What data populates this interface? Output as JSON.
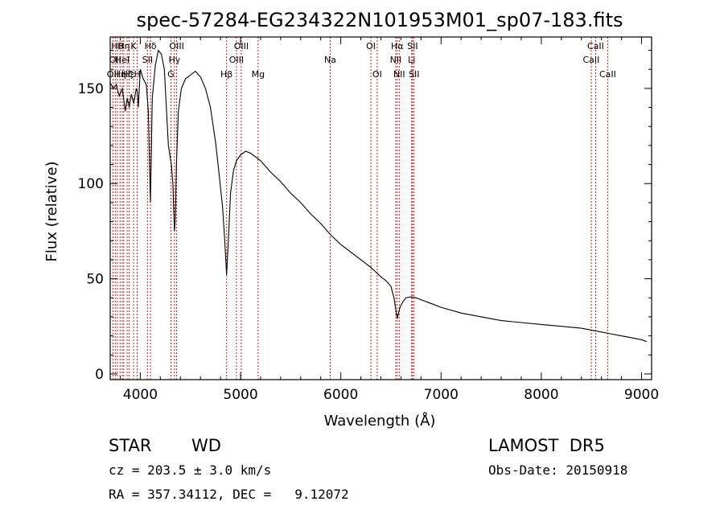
{
  "chart_data": {
    "type": "line",
    "title": "spec-57284-EG234322N101953M01_sp07-183.fits",
    "xlabel": "Wavelength (Å)",
    "ylabel": "Flux (relative)",
    "xlim": [
      3700,
      9100
    ],
    "ylim": [
      -3,
      177
    ],
    "x_ticks": [
      4000,
      5000,
      6000,
      7000,
      8000,
      9000
    ],
    "y_ticks": [
      0,
      50,
      100,
      150
    ],
    "grid": false,
    "legend": "none",
    "colors": {
      "line": "#000000",
      "lines_marker": "#cc0000"
    },
    "series": [
      {
        "x": [
          3700,
          3730,
          3760,
          3790,
          3820,
          3850,
          3870,
          3890,
          3910,
          3935,
          3960,
          3970,
          3980,
          4000,
          4030,
          4060,
          4080,
          4101,
          4120,
          4150,
          4180,
          4210,
          4240,
          4260,
          4280,
          4310,
          4325,
          4340,
          4350,
          4360,
          4380,
          4410,
          4450,
          4500,
          4550,
          4600,
          4650,
          4700,
          4750,
          4780,
          4800,
          4820,
          4840,
          4861,
          4880,
          4900,
          4930,
          4960,
          5000,
          5050,
          5100,
          5200,
          5300,
          5400,
          5500,
          5600,
          5700,
          5800,
          5900,
          6000,
          6100,
          6200,
          6300,
          6400,
          6450,
          6500,
          6530,
          6563,
          6590,
          6620,
          6650,
          6700,
          6750,
          6800,
          6900,
          7000,
          7200,
          7400,
          7600,
          7800,
          8000,
          8200,
          8400,
          8600,
          8800,
          8900,
          9000,
          9050
        ],
        "y": [
          153,
          150,
          152,
          146,
          150,
          138,
          145,
          140,
          147,
          142,
          150,
          148,
          140,
          160,
          155,
          152,
          138,
          90,
          145,
          162,
          170,
          168,
          160,
          140,
          120,
          110,
          100,
          75,
          82,
          110,
          138,
          150,
          155,
          157,
          159,
          156,
          150,
          140,
          122,
          108,
          98,
          88,
          72,
          52,
          72,
          95,
          107,
          112,
          115,
          117,
          116,
          112,
          106,
          101,
          95,
          90,
          84,
          79,
          73,
          68,
          64,
          60,
          56,
          51,
          49,
          46,
          40,
          29,
          35,
          38,
          40,
          40.5,
          40,
          39,
          37,
          35,
          32,
          30,
          28,
          27,
          26,
          25,
          24,
          22,
          20,
          19,
          18,
          17
        ]
      }
    ],
    "line_markers": [
      {
        "w": 3727,
        "label": "OII",
        "row": 3
      },
      {
        "w": 3750,
        "label": "OII",
        "row": 2
      },
      {
        "w": 3771,
        "label": "Hθ",
        "row": 1
      },
      {
        "w": 3798,
        "label": "Hη",
        "row": 3
      },
      {
        "w": 3820,
        "label": "HeI",
        "row": 2
      },
      {
        "w": 3835,
        "label": "Hη",
        "row": 1
      },
      {
        "w": 3869,
        "label": "Hζ",
        "row": 3
      },
      {
        "w": 3889,
        "label": "Hε",
        "row": 3
      },
      {
        "w": 3933,
        "label": "K",
        "row": 1
      },
      {
        "w": 3970,
        "label": "H",
        "row": 3
      },
      {
        "w": 4072,
        "label": "SII",
        "row": 2
      },
      {
        "w": 4102,
        "label": "Hδ",
        "row": 1
      },
      {
        "w": 4305,
        "label": "G",
        "row": 3
      },
      {
        "w": 4341,
        "label": "Hγ",
        "row": 2
      },
      {
        "w": 4363,
        "label": "OIII",
        "row": 1
      },
      {
        "w": 4861,
        "label": "Hβ",
        "row": 3
      },
      {
        "w": 4959,
        "label": "OIII",
        "row": 2
      },
      {
        "w": 5007,
        "label": "OIII",
        "row": 1
      },
      {
        "w": 5175,
        "label": "Mg",
        "row": 3
      },
      {
        "w": 5894,
        "label": "Na",
        "row": 2
      },
      {
        "w": 6300,
        "label": "OI",
        "row": 1
      },
      {
        "w": 6363,
        "label": "OI",
        "row": 3
      },
      {
        "w": 6548,
        "label": "NII",
        "row": 2
      },
      {
        "w": 6563,
        "label": "Hα",
        "row": 1
      },
      {
        "w": 6583,
        "label": "NII",
        "row": 3
      },
      {
        "w": 6707,
        "label": "Li",
        "row": 2
      },
      {
        "w": 6716,
        "label": "SII",
        "row": 1
      },
      {
        "w": 6731,
        "label": "SII",
        "row": 3
      },
      {
        "w": 8498,
        "label": "CaII",
        "row": 2
      },
      {
        "w": 8542,
        "label": "CaII",
        "row": 1
      },
      {
        "w": 8662,
        "label": "CaII",
        "row": 3
      }
    ]
  },
  "info": {
    "class": "STAR",
    "subclass": "WD",
    "survey": "LAMOST  DR5",
    "cz": "cz = 203.5 ± 3.0 km/s",
    "obs_date": "Obs-Date: 20150918",
    "coords": "RA = 357.34112, DEC =   9.12072"
  }
}
